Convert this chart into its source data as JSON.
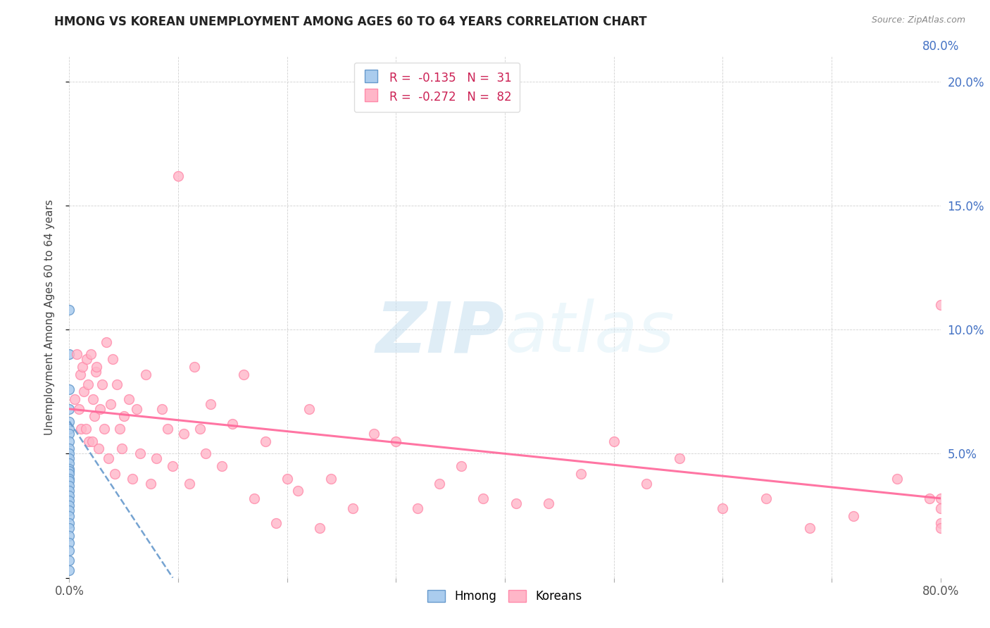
{
  "title": "HMONG VS KOREAN UNEMPLOYMENT AMONG AGES 60 TO 64 YEARS CORRELATION CHART",
  "source": "Source: ZipAtlas.com",
  "ylabel": "Unemployment Among Ages 60 to 64 years",
  "xlim": [
    0.0,
    0.8
  ],
  "ylim": [
    0.0,
    0.21
  ],
  "xticks": [
    0.0,
    0.1,
    0.2,
    0.3,
    0.4,
    0.5,
    0.6,
    0.7,
    0.8
  ],
  "yticks": [
    0.0,
    0.05,
    0.1,
    0.15,
    0.2
  ],
  "hmong_R": -0.135,
  "hmong_N": 31,
  "korean_R": -0.272,
  "korean_N": 82,
  "hmong_color": "#aaccee",
  "korean_color": "#ffb6c8",
  "hmong_edge_color": "#6699cc",
  "korean_edge_color": "#ff8aaa",
  "trend_hmong_color": "#6699cc",
  "trend_korean_color": "#ff6699",
  "background_color": "#ffffff",
  "hmong_x": [
    0.0,
    0.0,
    0.0,
    0.0,
    0.0,
    0.0,
    0.0,
    0.0,
    0.0,
    0.0,
    0.0,
    0.0,
    0.0,
    0.0,
    0.0,
    0.0,
    0.0,
    0.0,
    0.0,
    0.0,
    0.0,
    0.0,
    0.0,
    0.0,
    0.0,
    0.0,
    0.0,
    0.0,
    0.0,
    0.0,
    0.0
  ],
  "hmong_y": [
    0.108,
    0.09,
    0.076,
    0.068,
    0.063,
    0.06,
    0.058,
    0.055,
    0.052,
    0.05,
    0.048,
    0.046,
    0.044,
    0.043,
    0.042,
    0.04,
    0.039,
    0.037,
    0.035,
    0.033,
    0.031,
    0.029,
    0.027,
    0.025,
    0.022,
    0.02,
    0.017,
    0.014,
    0.011,
    0.007,
    0.003
  ],
  "korean_x": [
    0.005,
    0.007,
    0.009,
    0.01,
    0.011,
    0.012,
    0.013,
    0.015,
    0.016,
    0.017,
    0.018,
    0.02,
    0.021,
    0.022,
    0.023,
    0.024,
    0.025,
    0.027,
    0.028,
    0.03,
    0.032,
    0.034,
    0.036,
    0.038,
    0.04,
    0.042,
    0.044,
    0.046,
    0.048,
    0.05,
    0.055,
    0.058,
    0.062,
    0.065,
    0.07,
    0.075,
    0.08,
    0.085,
    0.09,
    0.095,
    0.1,
    0.105,
    0.11,
    0.115,
    0.12,
    0.125,
    0.13,
    0.14,
    0.15,
    0.16,
    0.17,
    0.18,
    0.19,
    0.2,
    0.21,
    0.22,
    0.23,
    0.24,
    0.26,
    0.28,
    0.3,
    0.32,
    0.34,
    0.36,
    0.38,
    0.41,
    0.44,
    0.47,
    0.5,
    0.53,
    0.56,
    0.6,
    0.64,
    0.68,
    0.72,
    0.76,
    0.79,
    0.8,
    0.8,
    0.8,
    0.8,
    0.8
  ],
  "korean_y": [
    0.072,
    0.09,
    0.068,
    0.082,
    0.06,
    0.085,
    0.075,
    0.06,
    0.088,
    0.078,
    0.055,
    0.09,
    0.055,
    0.072,
    0.065,
    0.083,
    0.085,
    0.052,
    0.068,
    0.078,
    0.06,
    0.095,
    0.048,
    0.07,
    0.088,
    0.042,
    0.078,
    0.06,
    0.052,
    0.065,
    0.072,
    0.04,
    0.068,
    0.05,
    0.082,
    0.038,
    0.048,
    0.068,
    0.06,
    0.045,
    0.162,
    0.058,
    0.038,
    0.085,
    0.06,
    0.05,
    0.07,
    0.045,
    0.062,
    0.082,
    0.032,
    0.055,
    0.022,
    0.04,
    0.035,
    0.068,
    0.02,
    0.04,
    0.028,
    0.058,
    0.055,
    0.028,
    0.038,
    0.045,
    0.032,
    0.03,
    0.03,
    0.042,
    0.055,
    0.038,
    0.048,
    0.028,
    0.032,
    0.02,
    0.025,
    0.04,
    0.032,
    0.11,
    0.028,
    0.032,
    0.022,
    0.02
  ],
  "trend_hmong_x0": 0.0,
  "trend_hmong_y0": 0.063,
  "trend_hmong_x1": 0.095,
  "trend_hmong_y1": 0.0,
  "trend_korean_x0": 0.0,
  "trend_korean_y0": 0.068,
  "trend_korean_x1": 0.8,
  "trend_korean_y1": 0.032
}
